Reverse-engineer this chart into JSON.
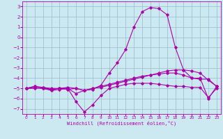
{
  "xlabel": "Windchill (Refroidissement éolien,°C)",
  "bg_color": "#cce8f0",
  "line_color": "#aa00aa",
  "grid_color": "#99bbcc",
  "ylim": [
    -7.5,
    3.5
  ],
  "xlim": [
    -0.5,
    23.5
  ],
  "yticks": [
    3,
    2,
    1,
    0,
    -1,
    -2,
    -3,
    -4,
    -5,
    -6,
    -7
  ],
  "xticks": [
    0,
    1,
    2,
    3,
    4,
    5,
    6,
    7,
    8,
    9,
    10,
    11,
    12,
    13,
    14,
    15,
    16,
    17,
    18,
    19,
    20,
    21,
    22,
    23
  ],
  "series": [
    {
      "x": [
        0,
        1,
        2,
        3,
        4,
        5,
        6,
        7,
        8,
        9,
        10,
        11,
        12,
        13,
        14,
        15,
        16,
        17,
        18,
        19,
        20,
        21,
        22,
        23
      ],
      "y": [
        -5.0,
        -4.8,
        -5.0,
        -5.2,
        -5.1,
        -5.0,
        -6.3,
        -7.3,
        -6.6,
        -5.7,
        -5.0,
        -4.8,
        -4.6,
        -4.5,
        -4.5,
        -4.5,
        -4.6,
        -4.7,
        -4.8,
        -4.8,
        -4.9,
        -4.9,
        -5.9,
        -5.0
      ]
    },
    {
      "x": [
        0,
        1,
        2,
        3,
        4,
        5,
        6,
        7,
        8,
        9,
        10,
        11,
        12,
        13,
        14,
        15,
        16,
        17,
        18,
        19,
        20,
        21,
        22,
        23
      ],
      "y": [
        -5.0,
        -4.9,
        -4.9,
        -5.1,
        -5.0,
        -5.0,
        -5.5,
        -5.2,
        -5.0,
        -4.8,
        -4.6,
        -4.4,
        -4.2,
        -4.0,
        -3.8,
        -3.7,
        -3.6,
        -3.5,
        -3.5,
        -3.7,
        -4.0,
        -4.1,
        -4.1,
        -4.8
      ]
    },
    {
      "x": [
        0,
        1,
        2,
        3,
        4,
        5,
        6,
        7,
        8,
        9,
        10,
        11,
        12,
        13,
        14,
        15,
        16,
        17,
        18,
        19,
        20,
        21,
        22,
        23
      ],
      "y": [
        -5.0,
        -4.8,
        -4.9,
        -5.0,
        -5.0,
        -4.9,
        -5.0,
        -5.2,
        -5.1,
        -4.7,
        -3.5,
        -2.5,
        -1.2,
        1.0,
        2.5,
        2.9,
        2.8,
        2.2,
        -1.0,
        -3.2,
        -4.0,
        -4.0,
        -6.0,
        -4.8
      ]
    },
    {
      "x": [
        0,
        1,
        2,
        3,
        4,
        5,
        6,
        7,
        8,
        9,
        10,
        11,
        12,
        13,
        14,
        15,
        16,
        17,
        18,
        19,
        20,
        21,
        22,
        23
      ],
      "y": [
        -5.0,
        -5.0,
        -5.0,
        -5.1,
        -5.0,
        -5.1,
        -5.0,
        -5.2,
        -5.0,
        -4.9,
        -4.7,
        -4.5,
        -4.3,
        -4.1,
        -3.9,
        -3.7,
        -3.5,
        -3.3,
        -3.2,
        -3.2,
        -3.3,
        -3.5,
        -4.2,
        -4.8
      ]
    }
  ]
}
